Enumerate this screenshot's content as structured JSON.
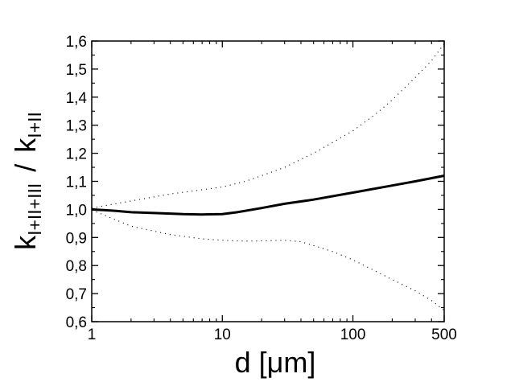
{
  "chart_data": {
    "type": "line",
    "title": "",
    "xlabel": "d [μm]",
    "ylabel": {
      "main": "k",
      "numerator_subscript": "I+II+III",
      "separator": "/",
      "denominator_subscript": "I+II"
    },
    "x_scale": "log",
    "xlim": [
      1,
      500
    ],
    "ylim": [
      0.6,
      1.6
    ],
    "x_ticks": [
      {
        "value": 1,
        "label": "1"
      },
      {
        "value": 10,
        "label": "10"
      },
      {
        "value": 100,
        "label": "100"
      },
      {
        "value": 500,
        "label": "500"
      }
    ],
    "y_ticks": [
      {
        "value": 0.6,
        "label": "0,6"
      },
      {
        "value": 0.7,
        "label": "0,7"
      },
      {
        "value": 0.8,
        "label": "0,8"
      },
      {
        "value": 0.9,
        "label": "0,9"
      },
      {
        "value": 1.0,
        "label": "1,0"
      },
      {
        "value": 1.1,
        "label": "1,1"
      },
      {
        "value": 1.2,
        "label": "1,2"
      },
      {
        "value": 1.3,
        "label": "1,3"
      },
      {
        "value": 1.4,
        "label": "1,4"
      },
      {
        "value": 1.5,
        "label": "1,5"
      },
      {
        "value": 1.6,
        "label": "1,6"
      }
    ],
    "grid": false,
    "legend": "none",
    "series": [
      {
        "style": "solid",
        "color": "#000000",
        "points": [
          [
            1,
            1.0
          ],
          [
            1.5,
            0.995
          ],
          [
            2,
            0.99
          ],
          [
            3,
            0.987
          ],
          [
            4,
            0.985
          ],
          [
            5,
            0.983
          ],
          [
            7,
            0.982
          ],
          [
            10,
            0.983
          ],
          [
            13,
            0.99
          ],
          [
            20,
            1.005
          ],
          [
            30,
            1.02
          ],
          [
            50,
            1.035
          ],
          [
            100,
            1.06
          ],
          [
            200,
            1.085
          ],
          [
            300,
            1.1
          ],
          [
            500,
            1.12
          ]
        ]
      },
      {
        "style": "dotted",
        "color": "#000000",
        "points": [
          [
            1,
            1.005
          ],
          [
            2,
            1.03
          ],
          [
            4,
            1.055
          ],
          [
            7,
            1.07
          ],
          [
            10,
            1.08
          ],
          [
            15,
            1.1
          ],
          [
            20,
            1.12
          ],
          [
            30,
            1.15
          ],
          [
            50,
            1.2
          ],
          [
            100,
            1.28
          ],
          [
            150,
            1.34
          ],
          [
            200,
            1.39
          ],
          [
            300,
            1.47
          ],
          [
            400,
            1.53
          ],
          [
            500,
            1.59
          ]
        ]
      },
      {
        "style": "dotted",
        "color": "#000000",
        "points": [
          [
            1,
            0.998
          ],
          [
            2,
            0.94
          ],
          [
            4,
            0.91
          ],
          [
            7,
            0.895
          ],
          [
            10,
            0.89
          ],
          [
            15,
            0.887
          ],
          [
            20,
            0.888
          ],
          [
            30,
            0.89
          ],
          [
            40,
            0.885
          ],
          [
            70,
            0.85
          ],
          [
            100,
            0.82
          ],
          [
            200,
            0.75
          ],
          [
            300,
            0.71
          ],
          [
            400,
            0.675
          ],
          [
            500,
            0.64
          ]
        ]
      }
    ]
  }
}
